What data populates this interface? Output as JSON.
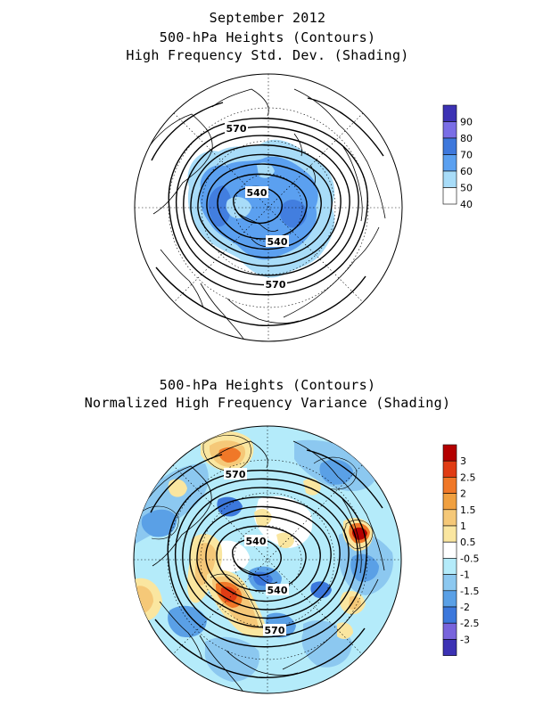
{
  "top_panel": {
    "title_lines": [
      "September 2012",
      "500-hPa Heights (Contours)",
      "High Frequency Std. Dev. (Shading)"
    ],
    "contour_labels": [
      "570",
      "540",
      "540",
      "570"
    ],
    "colorbar": {
      "labels": [
        "90",
        "80",
        "70",
        "60",
        "50",
        "40"
      ],
      "colors": [
        "#3c32b4",
        "#7a6ee6",
        "#3e78dc",
        "#5ba0f0",
        "#a8dcf8",
        "#ffffff"
      ]
    }
  },
  "bottom_panel": {
    "title_lines": [
      "500-hPa Heights (Contours)",
      "Normalized High Frequency Variance (Shading)"
    ],
    "contour_labels": [
      "570",
      "540",
      "540",
      "570"
    ],
    "colorbar": {
      "labels": [
        "3",
        "2.5",
        "2",
        "1.5",
        "1",
        "0.5",
        "-0.5",
        "-1",
        "-1.5",
        "-2",
        "-2.5",
        "-3"
      ],
      "colors": [
        "#b40000",
        "#e03c14",
        "#f07828",
        "#f0a040",
        "#f5c878",
        "#fae6a0",
        "#ffffff",
        "#b4ebfa",
        "#8cc8f0",
        "#5aa0e6",
        "#3c78dc",
        "#7864dc",
        "#3c32b4"
      ]
    }
  },
  "colors": {
    "land_outline": "#000000",
    "contour": "#000000",
    "grid": "#000000"
  }
}
